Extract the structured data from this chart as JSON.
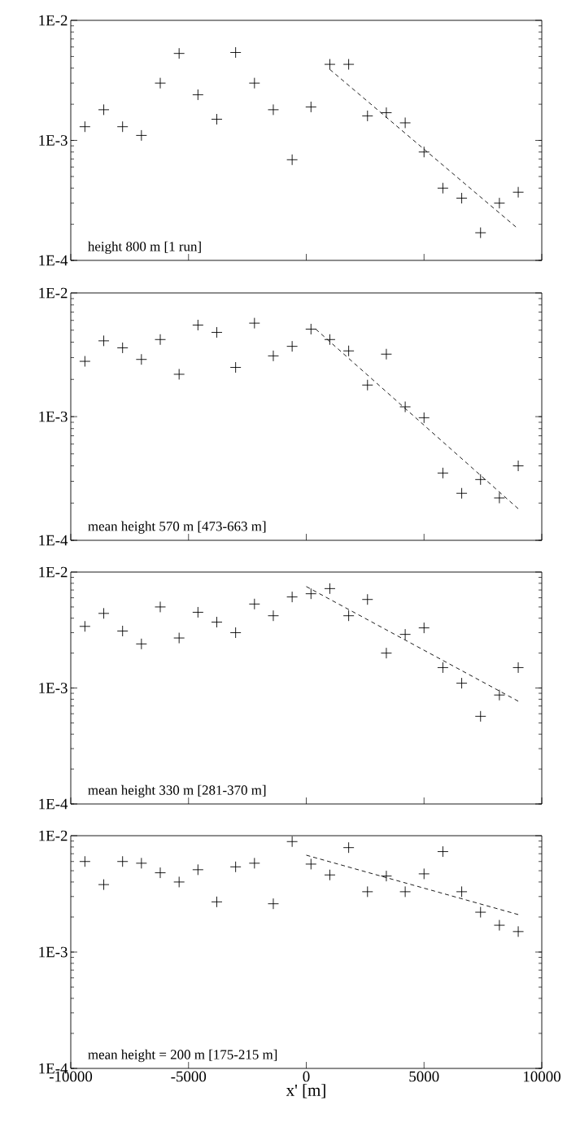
{
  "chart_data": [
    {
      "type": "scatter",
      "x": [
        -9400,
        -8600,
        -7800,
        -7000,
        -6200,
        -5400,
        -4600,
        -3800,
        -3000,
        -2200,
        -1400,
        -600,
        200,
        1000,
        1800,
        2600,
        3400,
        4200,
        5000,
        5800,
        6600,
        7400,
        8200,
        9000
      ],
      "marker": "cross",
      "log": "y",
      "xlim": [
        -10000,
        10000
      ],
      "xticks": [
        -10000,
        -5000,
        0,
        5000,
        10000
      ],
      "ylim": [
        0.0001,
        0.01
      ],
      "yticks": [
        {
          "value": 0.0001,
          "label": "1E-4"
        },
        {
          "value": 0.001,
          "label": "1E-3"
        },
        {
          "value": 0.01,
          "label": "1E-2"
        }
      ],
      "tick_labels": "y",
      "annotations": [
        "height 800 m [1 run]"
      ],
      "series": [
        {
          "color": "#000000",
          "values": [
            0.0013,
            0.0018,
            0.0013,
            0.0011,
            0.003,
            0.0053,
            0.0024,
            0.0015,
            0.0054,
            0.003,
            0.0018,
            0.00069,
            0.0019,
            0.0043,
            0.0043,
            0.0016,
            0.0017,
            0.0014,
            0.0008,
            0.0004,
            0.00033,
            0.00017,
            0.0003,
            0.00037
          ]
        },
        {
          "type": "line",
          "color": "#000000",
          "line_style": "dashed",
          "marker": "none",
          "x": [
            1000,
            8900
          ],
          "values": [
            0.0039,
            0.00019
          ]
        }
      ]
    },
    {
      "type": "scatter",
      "x": [
        -9400,
        -8600,
        -7800,
        -7000,
        -6200,
        -5400,
        -4600,
        -3800,
        -3000,
        -2200,
        -1400,
        -600,
        200,
        1000,
        1800,
        2600,
        3400,
        4200,
        5000,
        5800,
        6600,
        7400,
        8200,
        9000
      ],
      "marker": "cross",
      "log": "y",
      "xlim": [
        -10000,
        10000
      ],
      "xticks": [
        -10000,
        -5000,
        0,
        5000,
        10000
      ],
      "ylim": [
        0.0001,
        0.01
      ],
      "yticks": [
        {
          "value": 0.0001,
          "label": "1E-4"
        },
        {
          "value": 0.001,
          "label": "1E-3"
        },
        {
          "value": 0.01,
          "label": "1E-2"
        }
      ],
      "tick_labels": "y",
      "annotations": [
        "mean height 570 m [473-663 m]"
      ],
      "series": [
        {
          "color": "#000000",
          "values": [
            0.0028,
            0.0041,
            0.0036,
            0.0029,
            0.0042,
            0.0022,
            0.0055,
            0.0048,
            0.0025,
            0.0057,
            0.0031,
            0.0037,
            0.0051,
            0.0042,
            0.0034,
            0.0018,
            0.0032,
            0.0012,
            0.00098,
            0.00035,
            0.00024,
            0.00031,
            0.00022,
            0.0004
          ]
        },
        {
          "type": "line",
          "color": "#000000",
          "line_style": "dashed",
          "marker": "none",
          "x": [
            400,
            9000
          ],
          "values": [
            0.0051,
            0.00018
          ]
        }
      ]
    },
    {
      "type": "scatter",
      "x": [
        -9400,
        -8600,
        -7800,
        -7000,
        -6200,
        -5400,
        -4600,
        -3800,
        -3000,
        -2200,
        -1400,
        -600,
        200,
        1000,
        1800,
        2600,
        3400,
        4200,
        5000,
        5800,
        6600,
        7400,
        8200,
        9000
      ],
      "marker": "cross",
      "log": "y",
      "xlim": [
        -10000,
        10000
      ],
      "xticks": [
        -10000,
        -5000,
        0,
        5000,
        10000
      ],
      "ylim": [
        0.0001,
        0.01
      ],
      "yticks": [
        {
          "value": 0.0001,
          "label": "1E-4"
        },
        {
          "value": 0.001,
          "label": "1E-3"
        },
        {
          "value": 0.01,
          "label": "1E-2"
        }
      ],
      "tick_labels": "y",
      "annotations": [
        "mean height 330 m [281-370 m]"
      ],
      "series": [
        {
          "color": "#000000",
          "values": [
            0.0034,
            0.0044,
            0.0031,
            0.0024,
            0.005,
            0.0027,
            0.0045,
            0.0037,
            0.003,
            0.0053,
            0.0042,
            0.0061,
            0.0065,
            0.0072,
            0.0042,
            0.0058,
            0.002,
            0.0029,
            0.0033,
            0.0015,
            0.0011,
            0.00057,
            0.00087,
            0.0015
          ]
        },
        {
          "type": "line",
          "color": "#000000",
          "line_style": "dashed",
          "marker": "none",
          "x": [
            0,
            9000
          ],
          "values": [
            0.0075,
            0.00077
          ]
        }
      ]
    },
    {
      "type": "scatter",
      "x": [
        -9400,
        -8600,
        -7800,
        -7000,
        -6200,
        -5400,
        -4600,
        -3800,
        -3000,
        -2200,
        -1400,
        -600,
        200,
        1000,
        1800,
        2600,
        3400,
        4200,
        5000,
        5800,
        6600,
        7400,
        8200,
        9000
      ],
      "marker": "cross",
      "log": "y",
      "xlim": [
        -10000,
        10000
      ],
      "xticks": [
        -10000,
        -5000,
        0,
        5000,
        10000
      ],
      "ylim": [
        0.0001,
        0.01
      ],
      "yticks": [
        {
          "value": 0.0001,
          "label": "1E-4"
        },
        {
          "value": 0.001,
          "label": "1E-3"
        },
        {
          "value": 0.01,
          "label": "1E-2"
        }
      ],
      "xlabel": "x' [m]",
      "annotations": [
        "mean height = 200 m [175-215 m]"
      ],
      "series": [
        {
          "color": "#000000",
          "values": [
            0.006,
            0.0038,
            0.006,
            0.0058,
            0.0048,
            0.004,
            0.0051,
            0.0027,
            0.0054,
            0.0058,
            0.0026,
            0.0089,
            0.0057,
            0.0046,
            0.0079,
            0.0033,
            0.0045,
            0.0033,
            0.0047,
            0.0073,
            0.0033,
            0.0022,
            0.0017,
            0.0015
          ]
        },
        {
          "type": "line",
          "color": "#000000",
          "line_style": "dashed",
          "marker": "none",
          "x": [
            0,
            9000
          ],
          "values": [
            0.0068,
            0.0021
          ]
        }
      ]
    }
  ]
}
